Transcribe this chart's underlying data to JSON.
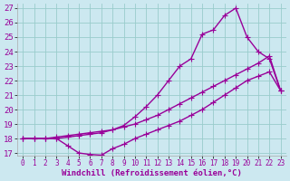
{
  "xlabel": "Windchill (Refroidissement éolien,°C)",
  "bg_color": "#cce8f0",
  "line_color": "#990099",
  "grid_color": "#99cccc",
  "xlim_min": -0.5,
  "xlim_max": 23.5,
  "ylim_min": 16.8,
  "ylim_max": 27.3,
  "xticks": [
    0,
    1,
    2,
    3,
    4,
    5,
    6,
    7,
    8,
    9,
    10,
    11,
    12,
    13,
    14,
    15,
    16,
    17,
    18,
    19,
    20,
    21,
    22,
    23
  ],
  "yticks": [
    17,
    18,
    19,
    20,
    21,
    22,
    23,
    24,
    25,
    26,
    27
  ],
  "line_dip_x": [
    0,
    1,
    2,
    3,
    4,
    5,
    6,
    7,
    8,
    9,
    10,
    11,
    12,
    13,
    14,
    15,
    16,
    17,
    18,
    19,
    20,
    21,
    22,
    23
  ],
  "line_dip_y": [
    18,
    18,
    18,
    18,
    17.5,
    17.0,
    16.9,
    16.85,
    17.3,
    17.6,
    18.0,
    18.3,
    18.6,
    18.9,
    19.2,
    19.6,
    20.0,
    20.5,
    21.0,
    21.5,
    22.0,
    22.3,
    22.6,
    21.3
  ],
  "line_diag_x": [
    0,
    1,
    2,
    3,
    4,
    5,
    6,
    7,
    8,
    9,
    10,
    11,
    12,
    13,
    14,
    15,
    16,
    17,
    18,
    19,
    20,
    21,
    22,
    23
  ],
  "line_diag_y": [
    18,
    18,
    18,
    18.1,
    18.2,
    18.3,
    18.4,
    18.5,
    18.6,
    18.8,
    19.0,
    19.3,
    19.6,
    20.0,
    20.4,
    20.8,
    21.2,
    21.6,
    22.0,
    22.4,
    22.8,
    23.2,
    23.7,
    21.3
  ],
  "line_peak_x": [
    0,
    1,
    2,
    3,
    4,
    5,
    6,
    7,
    8,
    9,
    10,
    11,
    12,
    13,
    14,
    15,
    16,
    17,
    18,
    19,
    20,
    21,
    22,
    23
  ],
  "line_peak_y": [
    18,
    18,
    18,
    18,
    18.1,
    18.2,
    18.3,
    18.4,
    18.6,
    18.9,
    19.5,
    20.2,
    21.0,
    22.0,
    23.0,
    23.5,
    25.2,
    25.5,
    26.5,
    27.0,
    25.0,
    24.0,
    23.5,
    21.3
  ],
  "marker": "+",
  "markersize": 4,
  "linewidth": 1.0,
  "tick_fontsize": 5.5,
  "xlabel_fontsize": 6.5
}
